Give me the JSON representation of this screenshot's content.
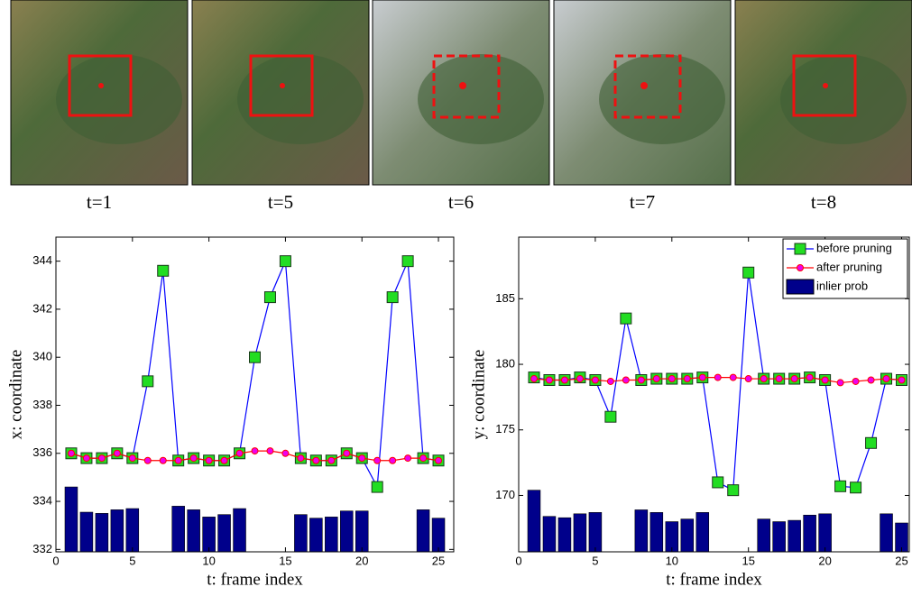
{
  "panels": [
    {
      "caption": "t=1",
      "box": "solid"
    },
    {
      "caption": "t=5",
      "box": "solid"
    },
    {
      "caption": "t=6",
      "box": "dashed"
    },
    {
      "caption": "t=7",
      "box": "dashed"
    },
    {
      "caption": "t=8",
      "box": "solid"
    }
  ],
  "chart_data": [
    {
      "type": "line",
      "y_label": "x: coordinate",
      "x_label": "t: frame index",
      "x": [
        1,
        2,
        3,
        4,
        5,
        6,
        7,
        8,
        9,
        10,
        11,
        12,
        13,
        14,
        15,
        16,
        17,
        18,
        19,
        20,
        21,
        22,
        23,
        24,
        25
      ],
      "xlim": [
        0,
        26
      ],
      "xticks": [
        0,
        5,
        10,
        15,
        20,
        25
      ],
      "ylim": [
        331.9,
        345
      ],
      "yticks": [
        332,
        334,
        336,
        338,
        340,
        342,
        344
      ],
      "series": [
        {
          "type": "bar",
          "color": "#00008b",
          "values": [
            334.6,
            333.55,
            333.5,
            333.65,
            333.7,
            null,
            null,
            333.8,
            333.65,
            333.35,
            333.45,
            333.7,
            null,
            null,
            null,
            333.45,
            333.3,
            333.35,
            333.6,
            333.6,
            null,
            null,
            null,
            333.65,
            333.3
          ]
        },
        {
          "type": "line",
          "color": "#0000ff",
          "marker": "square",
          "marker_color": "#22dd22",
          "values": [
            336.0,
            335.8,
            335.8,
            336.0,
            335.8,
            339.0,
            343.6,
            335.7,
            335.8,
            335.7,
            335.7,
            336.0,
            340.0,
            342.5,
            344.0,
            335.8,
            335.7,
            335.7,
            336.0,
            335.8,
            334.6,
            342.5,
            344.0,
            335.8,
            335.7
          ]
        },
        {
          "type": "line",
          "color": "#ff0000",
          "marker": "circle",
          "marker_color": "#ee00ee",
          "values": [
            336.0,
            335.8,
            335.8,
            336.0,
            335.8,
            335.7,
            335.7,
            335.7,
            335.8,
            335.7,
            335.7,
            336.0,
            336.1,
            336.1,
            336.0,
            335.8,
            335.7,
            335.7,
            336.0,
            335.8,
            335.7,
            335.7,
            335.8,
            335.8,
            335.7
          ]
        }
      ]
    },
    {
      "type": "line",
      "y_label": "y: coordinate",
      "x_label": "t: frame index",
      "legend": "northeast",
      "x": [
        1,
        2,
        3,
        4,
        5,
        6,
        7,
        8,
        9,
        10,
        11,
        12,
        13,
        14,
        15,
        16,
        17,
        18,
        19,
        20,
        21,
        22,
        23,
        24,
        25
      ],
      "xlim": [
        0,
        25.5
      ],
      "xticks": [
        0,
        5,
        10,
        15,
        20,
        25
      ],
      "ylim": [
        165.7,
        189.7
      ],
      "yticks": [
        170,
        175,
        180,
        185
      ],
      "series": [
        {
          "type": "bar",
          "name": "inlier prob",
          "color": "#00008b",
          "values": [
            170.4,
            168.4,
            168.3,
            168.6,
            168.7,
            null,
            null,
            168.9,
            168.7,
            168.0,
            168.2,
            168.7,
            null,
            null,
            null,
            168.2,
            168.0,
            168.1,
            168.5,
            168.6,
            null,
            null,
            null,
            168.6,
            167.9
          ]
        },
        {
          "type": "line",
          "name": "before pruning",
          "color": "#0000ff",
          "marker": "square",
          "marker_color": "#22dd22",
          "values": [
            179.0,
            178.8,
            178.8,
            179.0,
            178.8,
            176.0,
            183.5,
            178.8,
            178.9,
            178.9,
            178.9,
            179.0,
            171.0,
            170.4,
            187.0,
            178.9,
            178.9,
            178.9,
            179.0,
            178.8,
            170.7,
            170.6,
            174.0,
            178.9,
            178.8
          ]
        },
        {
          "type": "line",
          "name": "after pruning",
          "color": "#ff0000",
          "marker": "circle",
          "marker_color": "#ee00ee",
          "values": [
            178.9,
            178.8,
            178.8,
            178.9,
            178.8,
            178.7,
            178.8,
            178.8,
            178.9,
            178.9,
            178.9,
            179.0,
            179.0,
            179.0,
            178.9,
            178.9,
            178.9,
            178.9,
            179.0,
            178.8,
            178.6,
            178.7,
            178.8,
            178.9,
            178.8
          ]
        }
      ]
    }
  ]
}
